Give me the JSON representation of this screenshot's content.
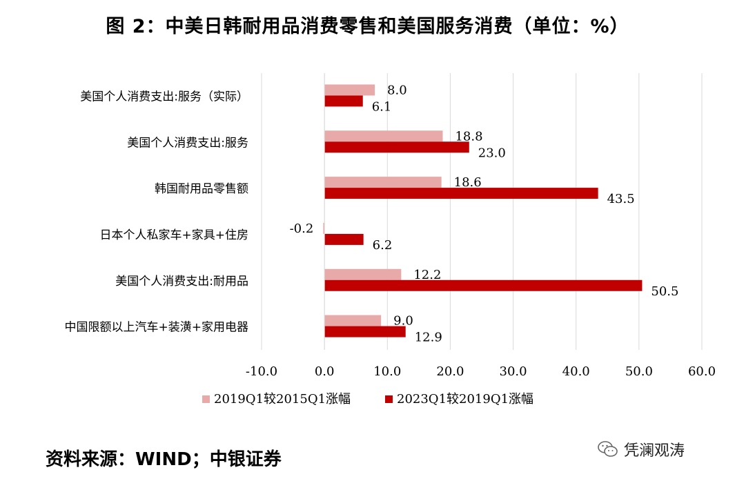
{
  "title": "图 2：中美日韩耐用品消费零售和美国服务消费（单位：%）",
  "source": "资料来源：WIND；中银证券",
  "watermark": "凭澜观涛",
  "colors": {
    "series1": "#E8A9A9",
    "series2": "#C00000",
    "grid": "#D9D9D9"
  },
  "chart_data": {
    "type": "bar",
    "orientation": "horizontal",
    "categories": [
      "美国个人消费支出:服务（实际）",
      "美国个人消费支出:服务",
      "韩国耐用品零售额",
      "日本个人私家车+家具+住房",
      "美国个人消费支出:耐用品",
      "中国限额以上汽车+装潢+家用电器"
    ],
    "series": [
      {
        "name": "2019Q1较2015Q1涨幅",
        "values": [
          8.0,
          18.8,
          18.6,
          -0.2,
          12.2,
          9.0
        ]
      },
      {
        "name": "2023Q1较2019Q1涨幅",
        "values": [
          6.1,
          23.0,
          43.5,
          6.2,
          50.5,
          12.9
        ]
      }
    ],
    "value_labels": [
      [
        "8.0",
        "18.8",
        "18.6",
        "-0.2",
        "12.2",
        "9.0"
      ],
      [
        "6.1",
        "23.0",
        "43.5",
        "6.2",
        "50.5",
        "12.9"
      ]
    ],
    "xlim": [
      -10,
      60
    ],
    "xticks": [
      -10,
      0,
      10,
      20,
      30,
      40,
      50,
      60
    ],
    "xtick_labels": [
      "-10.0",
      "0.0",
      "10.0",
      "20.0",
      "30.0",
      "40.0",
      "50.0",
      "60.0"
    ],
    "grid": "vertical",
    "legend_position": "bottom"
  }
}
